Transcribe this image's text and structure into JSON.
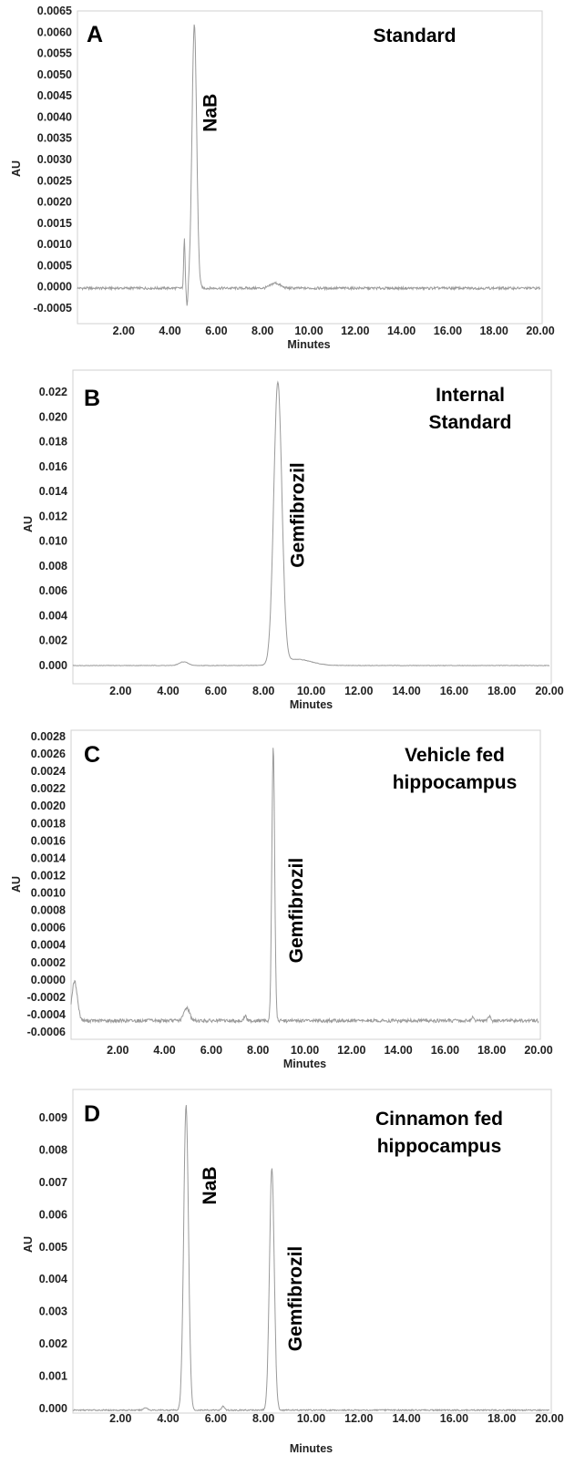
{
  "chart_data": [
    {
      "type": "line",
      "panel": "A",
      "title": "Standard",
      "xlabel": "Minutes",
      "ylabel": "AU",
      "xlim": [
        0,
        20
      ],
      "ylim": [
        -0.0007,
        0.0065
      ],
      "xticks": [
        "2.00",
        "4.00",
        "6.00",
        "8.00",
        "10.00",
        "12.00",
        "14.00",
        "16.00",
        "18.00",
        "20.00"
      ],
      "yticks": [
        "-0.0005",
        "0.0000",
        "0.0005",
        "0.0010",
        "0.0015",
        "0.0020",
        "0.0025",
        "0.0030",
        "0.0035",
        "0.0040",
        "0.0045",
        "0.0050",
        "0.0055",
        "0.0060",
        "0.0065"
      ],
      "baseline": -3e-05,
      "noise": 3e-05,
      "series": [
        {
          "peaks": [
            {
              "rt": 4.62,
              "height": 0.00115,
              "width": 0.03
            },
            {
              "rt": 4.74,
              "height": -0.00045,
              "width": 0.03
            },
            {
              "rt": 5.05,
              "height": 0.00622,
              "width": 0.1
            },
            {
              "rt": 8.55,
              "height": 0.00012,
              "width": 0.2
            }
          ]
        }
      ],
      "annotations": [
        {
          "text": "NaB",
          "x": 6.0,
          "y": 0.0041
        }
      ]
    },
    {
      "type": "line",
      "panel": "B",
      "title": [
        "Internal",
        "Standard"
      ],
      "xlabel": "Minutes",
      "ylabel": "AU",
      "xlim": [
        0,
        20
      ],
      "ylim": [
        -0.001,
        0.0235
      ],
      "xticks": [
        "2.00",
        "4.00",
        "6.00",
        "8.00",
        "10.00",
        "12.00",
        "14.00",
        "16.00",
        "18.00",
        "20.00"
      ],
      "yticks": [
        "0.000",
        "0.002",
        "0.004",
        "0.006",
        "0.008",
        "0.010",
        "0.012",
        "0.014",
        "0.016",
        "0.018",
        "0.020",
        "0.022"
      ],
      "baseline": 0.0,
      "noise": 2e-05,
      "series": [
        {
          "peaks": [
            {
              "rt": 4.65,
              "height": 0.0003,
              "width": 0.18
            },
            {
              "rt": 8.6,
              "height": 0.0226,
              "width": 0.17
            },
            {
              "rt": 9.4,
              "height": 0.0005,
              "width": 0.6
            }
          ]
        }
      ],
      "annotations": [
        {
          "text": "Gemfibrozil",
          "x": 9.7,
          "y": 0.0121
        }
      ]
    },
    {
      "type": "line",
      "panel": "C",
      "title": [
        "Vehicle fed",
        "hippocampus"
      ],
      "xlabel": "Minutes",
      "ylabel": "AU",
      "xlim": [
        0,
        20
      ],
      "ylim": [
        -0.0007,
        0.0029
      ],
      "xticks": [
        "2.00",
        "4.00",
        "6.00",
        "8.00",
        "10.00",
        "12.00",
        "14.00",
        "16.00",
        "18.00",
        "20.00"
      ],
      "yticks": [
        "-0.0006",
        "-0.0004",
        "-0.0002",
        "0.0000",
        "0.0002",
        "0.0004",
        "0.0006",
        "0.0008",
        "0.0010",
        "0.0012",
        "0.0014",
        "0.0016",
        "0.0018",
        "0.0020",
        "0.0022",
        "0.0024",
        "0.0026",
        "0.0028"
      ],
      "baseline": -0.00047,
      "noise": 2e-05,
      "series": [
        {
          "peaks": [
            {
              "rt": 0.15,
              "height": 0.00045,
              "width": 0.12
            },
            {
              "rt": 4.95,
              "height": 0.00015,
              "width": 0.12
            },
            {
              "rt": 7.45,
              "height": 6e-05,
              "width": 0.05
            },
            {
              "rt": 8.65,
              "height": 0.00317,
              "width": 0.06
            },
            {
              "rt": 17.2,
              "height": 5e-05,
              "width": 0.05
            },
            {
              "rt": 17.9,
              "height": 5e-05,
              "width": 0.05
            }
          ]
        }
      ],
      "annotations": [
        {
          "text": "Gemfibrozil",
          "x": 9.9,
          "y": 0.0008
        }
      ]
    },
    {
      "type": "line",
      "panel": "D",
      "title": [
        "Cinnamon fed",
        "hippocampus"
      ],
      "xlabel": "Minutes",
      "ylabel": "AU",
      "xlim": [
        0,
        20
      ],
      "ylim": [
        -0.0004,
        0.0098
      ],
      "xticks": [
        "2.00",
        "4.00",
        "6.00",
        "8.00",
        "10.00",
        "12.00",
        "14.00",
        "16.00",
        "18.00",
        "20.00"
      ],
      "yticks": [
        "0.000",
        "0.001",
        "0.002",
        "0.003",
        "0.004",
        "0.005",
        "0.006",
        "0.007",
        "0.008",
        "0.009"
      ],
      "baseline": -5e-05,
      "noise": 2e-05,
      "series": [
        {
          "peaks": [
            {
              "rt": 3.05,
              "height": 8e-05,
              "width": 0.08
            },
            {
              "rt": 4.75,
              "height": 0.00945,
              "width": 0.1
            },
            {
              "rt": 6.3,
              "height": 0.00012,
              "width": 0.06
            },
            {
              "rt": 8.35,
              "height": 0.0075,
              "width": 0.1
            }
          ]
        }
      ],
      "annotations": [
        {
          "text": "NaB",
          "x": 6.0,
          "y": 0.0069
        },
        {
          "text": "Gemfibrozil",
          "x": 9.6,
          "y": 0.0034
        }
      ]
    }
  ]
}
